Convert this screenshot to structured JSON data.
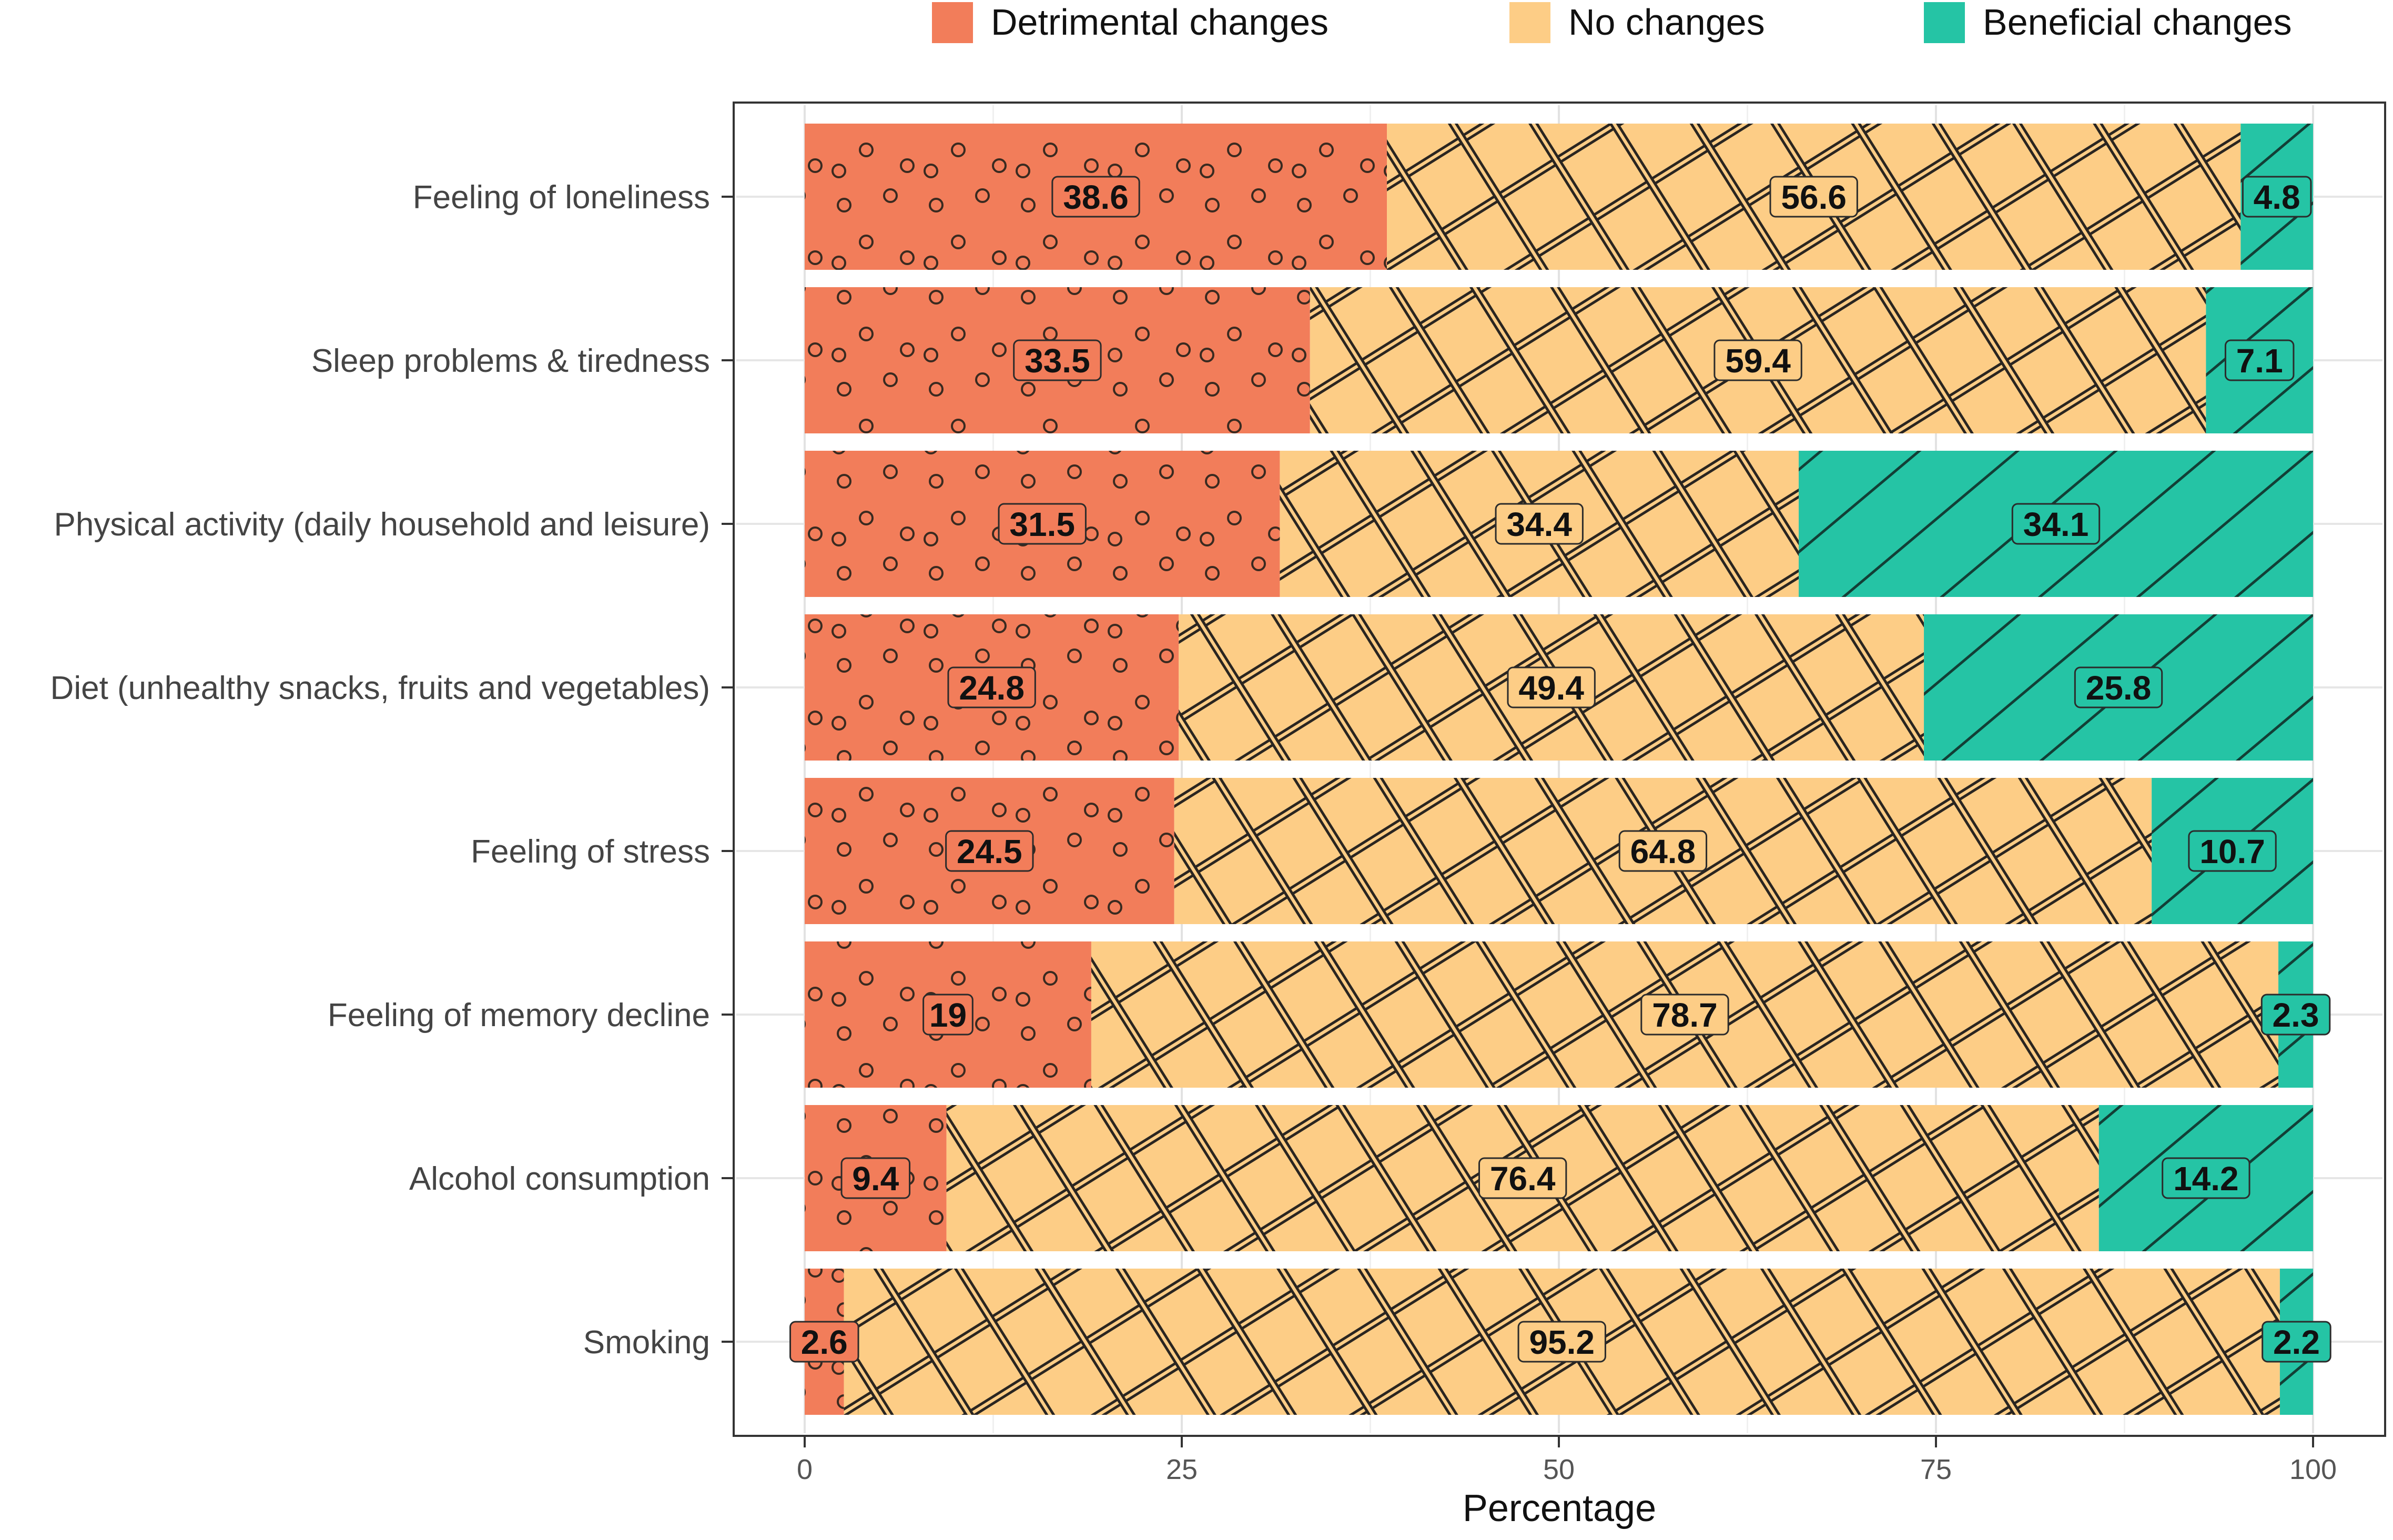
{
  "chart_data": {
    "type": "bar",
    "orientation": "horizontal",
    "stacked": true,
    "title": "",
    "xlabel": "Percentage",
    "ylabel": "",
    "xlim": [
      0,
      100
    ],
    "x_ticks": [
      0,
      25,
      50,
      75,
      100
    ],
    "grid": true,
    "legend_position": "top",
    "categories": [
      "Feeling of loneliness",
      "Sleep problems & tiredness",
      "Physical activity (daily household and leisure)",
      "Diet (unhealthy snacks, fruits and vegetables)",
      "Feeling of stress",
      "Feeling of memory decline",
      "Alcohol consumption",
      "Smoking"
    ],
    "series": [
      {
        "name": "Detrimental changes",
        "color": "#f27d5a",
        "pattern": "circles",
        "values": [
          38.6,
          33.5,
          31.5,
          24.8,
          24.5,
          19,
          9.4,
          2.6
        ]
      },
      {
        "name": "No changes",
        "color": "#fdcd86",
        "pattern": "crosshatch",
        "values": [
          56.6,
          59.4,
          34.4,
          49.4,
          64.8,
          78.7,
          76.4,
          95.2
        ]
      },
      {
        "name": "Beneficial changes",
        "color": "#25c4a5",
        "pattern": "stripes",
        "values": [
          4.8,
          7.1,
          34.1,
          25.8,
          10.7,
          2.3,
          14.2,
          2.2
        ]
      }
    ]
  }
}
